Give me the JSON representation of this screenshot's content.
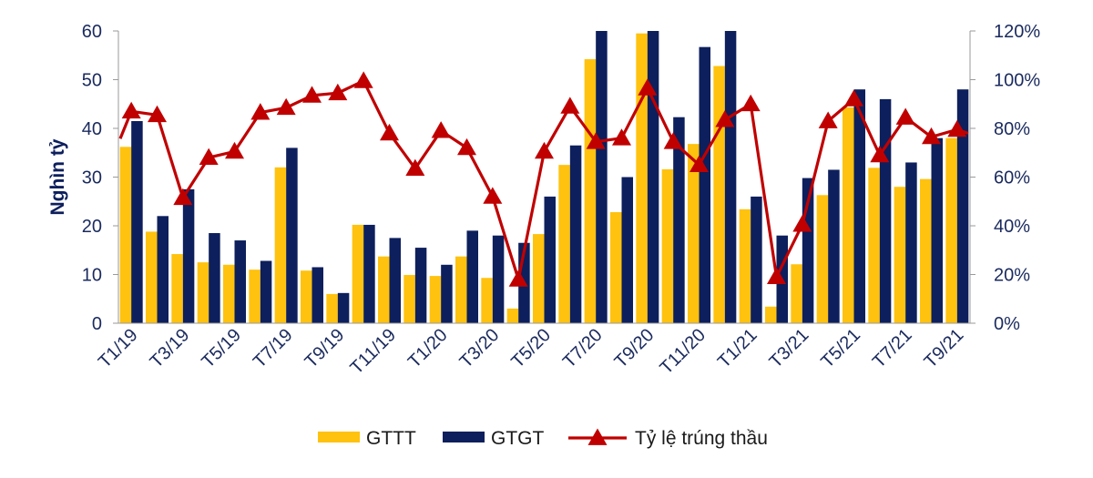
{
  "chart_data": {
    "type": "bar",
    "ylabel": "Nghìn tỷ",
    "ylim": [
      0,
      60
    ],
    "yticks": [
      "0",
      "10",
      "20",
      "30",
      "40",
      "50",
      "60"
    ],
    "y2lim": [
      0,
      1.2
    ],
    "y2ticks": [
      "0%",
      "20%",
      "40%",
      "60%",
      "80%",
      "100%",
      "120%"
    ],
    "grid": false,
    "legend_position": "bottom",
    "categories": [
      "T1/19",
      "T2/19",
      "T3/19",
      "T4/19",
      "T5/19",
      "T6/19",
      "T7/19",
      "T8/19",
      "T9/19",
      "T10/19",
      "T11/19",
      "T12/19",
      "T1/20",
      "T2/20",
      "T3/20",
      "T4/20",
      "T5/20",
      "T6/20",
      "T7/20",
      "T8/20",
      "T9/20",
      "T10/20",
      "T11/20",
      "T12/20",
      "T1/21",
      "T2/21",
      "T3/21",
      "T4/21",
      "T5/21",
      "T6/21",
      "T7/21",
      "T8/21",
      "T9/21"
    ],
    "tick_labels": [
      "T1/19",
      "",
      "T3/19",
      "",
      "T5/19",
      "",
      "T7/19",
      "",
      "T9/19",
      "",
      "T11/19",
      "",
      "T1/20",
      "",
      "T3/20",
      "",
      "T5/20",
      "",
      "T7/20",
      "",
      "T9/20",
      "",
      "T11/20",
      "",
      "T1/21",
      "",
      "T3/21",
      "",
      "T5/21",
      "",
      "T7/21",
      "",
      "T9/21"
    ],
    "series": [
      {
        "name": "GTTT",
        "type": "bar",
        "axis": "left",
        "color": "#FFC20E",
        "values": [
          36.2,
          18.8,
          14.2,
          12.5,
          12.0,
          11.0,
          32.0,
          10.8,
          6.0,
          20.2,
          13.7,
          9.9,
          9.7,
          13.7,
          9.3,
          3.0,
          18.3,
          32.5,
          54.2,
          22.8,
          59.5,
          31.6,
          36.8,
          52.8,
          23.4,
          3.4,
          12.1,
          26.3,
          44.3,
          31.9,
          28.0,
          29.6,
          38.0
        ]
      },
      {
        "name": "GTGT",
        "type": "bar",
        "axis": "left",
        "color": "#0D1F5C",
        "values": [
          41.5,
          22.0,
          27.5,
          18.5,
          17.0,
          12.8,
          36.0,
          11.5,
          6.2,
          20.2,
          17.5,
          15.5,
          12.0,
          19.0,
          18.0,
          16.5,
          26.0,
          36.5,
          60.0,
          30.0,
          60.0,
          42.3,
          56.7,
          60.0,
          26.0,
          18.0,
          29.8,
          31.5,
          48.0,
          46.0,
          33.0,
          38.0,
          48.0
        ]
      },
      {
        "name": "Tỷ lệ trúng thầu",
        "type": "line",
        "axis": "right",
        "color": "#C00000",
        "values": [
          0.87,
          0.855,
          0.515,
          0.68,
          0.705,
          0.865,
          0.885,
          0.935,
          0.945,
          0.995,
          0.78,
          0.635,
          0.79,
          0.72,
          0.52,
          0.18,
          0.705,
          0.89,
          0.745,
          0.76,
          0.965,
          0.745,
          0.65,
          0.835,
          0.9,
          0.19,
          0.405,
          0.83,
          0.92,
          0.69,
          0.845,
          0.765,
          0.795
        ]
      }
    ]
  }
}
